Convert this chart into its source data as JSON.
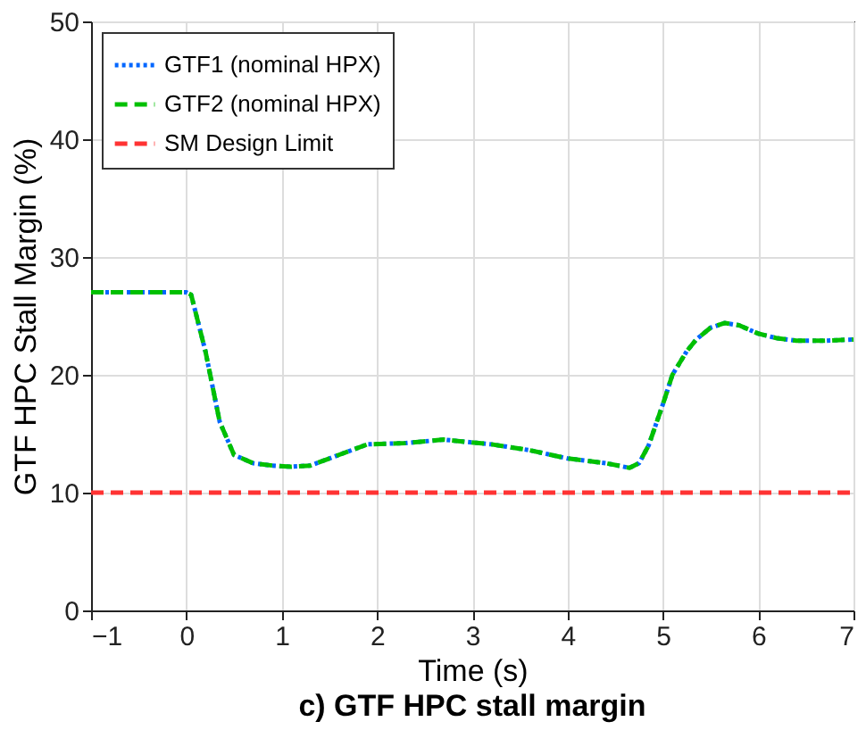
{
  "chart_data": {
    "type": "line",
    "title": "c) GTF HPC stall margin",
    "xlabel": "Time (s)",
    "ylabel": "GTF HPC Stall Margin (%)",
    "xlim": [
      -1,
      7
    ],
    "xticks": [
      -1,
      0,
      1,
      2,
      3,
      4,
      5,
      6,
      7
    ],
    "ylim": [
      0,
      50
    ],
    "yticks": [
      0,
      10,
      20,
      30,
      40,
      50
    ],
    "grid": true,
    "legend": "top left",
    "series": [
      {
        "name": "GTF1 (nominal HPX)",
        "color": "#0066ff",
        "line_style": "dotted",
        "x": [
          -1,
          0,
          0.05,
          0.2,
          0.35,
          0.5,
          0.7,
          0.9,
          1.1,
          1.3,
          1.6,
          1.9,
          2.3,
          2.7,
          3.2,
          3.6,
          4,
          4.4,
          4.65,
          4.75,
          4.85,
          5,
          5.1,
          5.25,
          5.35,
          5.5,
          5.65,
          5.8,
          6,
          6.2,
          6.4,
          6.7,
          7
        ],
        "values": [
          27,
          27,
          26.8,
          22,
          16,
          13.2,
          12.5,
          12.3,
          12.2,
          12.3,
          13.2,
          14.1,
          14.2,
          14.5,
          14.1,
          13.6,
          12.9,
          12.5,
          12.1,
          12.5,
          14,
          17.5,
          20,
          22,
          23,
          24,
          24.4,
          24.2,
          23.5,
          23.1,
          22.9,
          22.9,
          23
        ]
      },
      {
        "name": "GTF2 (nominal HPX)",
        "color": "#00c000",
        "line_style": "dashed",
        "x": [
          -1,
          0,
          0.05,
          0.2,
          0.35,
          0.5,
          0.7,
          0.9,
          1.1,
          1.3,
          1.6,
          1.9,
          2.3,
          2.7,
          3.2,
          3.6,
          4,
          4.4,
          4.65,
          4.75,
          4.85,
          5,
          5.1,
          5.25,
          5.35,
          5.5,
          5.65,
          5.8,
          6,
          6.2,
          6.4,
          6.7,
          7
        ],
        "values": [
          27,
          27,
          26.8,
          22,
          16,
          13.2,
          12.5,
          12.3,
          12.2,
          12.3,
          13.2,
          14.1,
          14.2,
          14.5,
          14.1,
          13.6,
          12.9,
          12.5,
          12.1,
          12.5,
          14,
          17.5,
          20,
          22,
          23,
          24,
          24.4,
          24.2,
          23.5,
          23.1,
          22.9,
          22.9,
          23
        ]
      },
      {
        "name": "SM Design Limit",
        "color": "#ff3333",
        "line_style": "dashed",
        "x": [
          -1,
          7
        ],
        "values": [
          10,
          10
        ]
      }
    ]
  }
}
